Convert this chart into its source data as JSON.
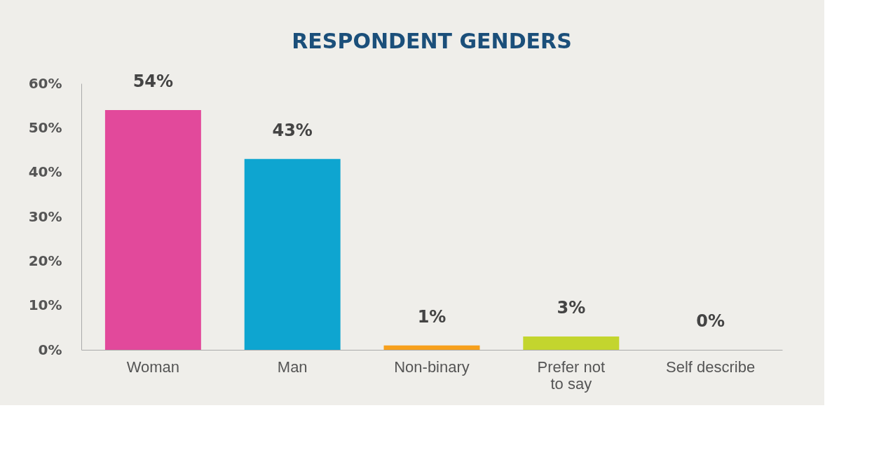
{
  "chart_data": {
    "type": "bar",
    "title": "RESPONDENT GENDERS",
    "categories": [
      "Woman",
      "Man",
      "Non-binary",
      "Prefer not to say",
      "Self describe"
    ],
    "values": [
      54,
      43,
      1,
      3,
      0
    ],
    "colors": [
      "#e2499b",
      "#0ea5d0",
      "#f7a01c",
      "#c3d52e",
      "#9e9e9e"
    ],
    "value_labels": [
      "54%",
      "43%",
      "1%",
      "3%",
      "0%"
    ],
    "ylim": [
      0,
      60
    ],
    "yticks": [
      {
        "value": 0,
        "label": "0%"
      },
      {
        "value": 10,
        "label": "10%"
      },
      {
        "value": 20,
        "label": "20%"
      },
      {
        "value": 30,
        "label": "30%"
      },
      {
        "value": 40,
        "label": "40%"
      },
      {
        "value": 50,
        "label": "50%"
      },
      {
        "value": 60,
        "label": "60%"
      }
    ],
    "grid": false
  }
}
